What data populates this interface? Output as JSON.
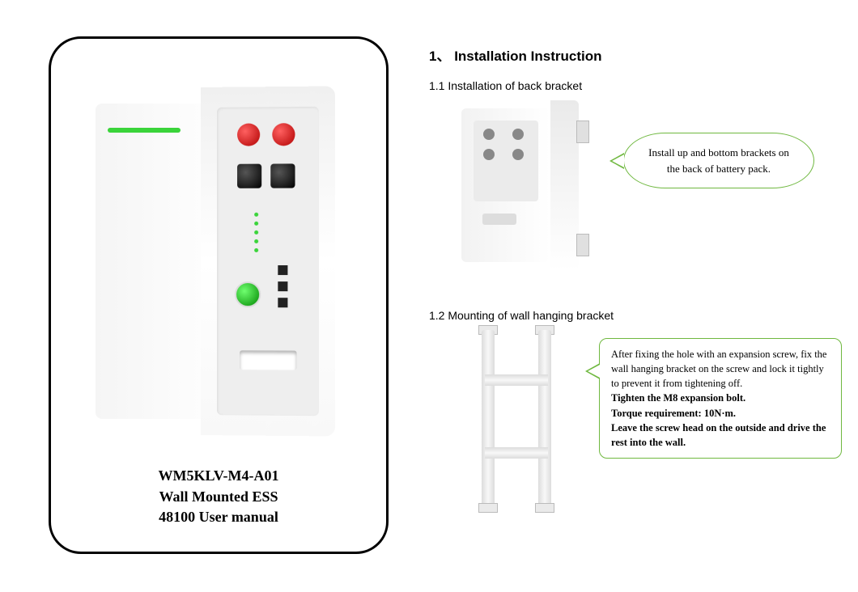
{
  "product": {
    "model": "WM5KLV-M4-A01",
    "name": "Wall Mounted ESS",
    "subtitle": "48100 User manual"
  },
  "section": {
    "number": "1、",
    "title": "Installation Instruction"
  },
  "step1": {
    "heading": "1.1 Installation of back bracket",
    "callout": "Install up and bottom brackets on the back of battery pack."
  },
  "step2": {
    "heading": "1.2 Mounting of wall hanging bracket",
    "text1": "After fixing the hole with an expansion screw, fix the wall hanging bracket on the screw and lock it tightly to prevent it from tightening off.",
    "bold1": "Tighten the M8 expansion bolt.",
    "bold2": "Torque requirement: 10N·m.",
    "bold3": "Leave the screw head on the outside and drive the rest into the wall."
  },
  "colors": {
    "accent_green": "#6fb83f",
    "led_green": "#3ad43a",
    "terminal_red": "#b00000"
  }
}
